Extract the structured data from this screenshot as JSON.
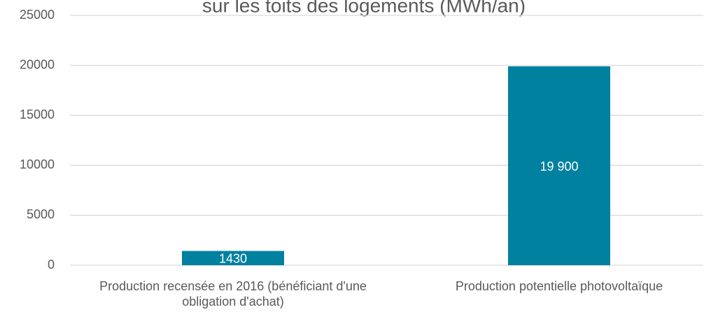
{
  "chart_data": {
    "type": "bar",
    "title": "sur les toits des logements (MWh/an)",
    "categories": [
      "Production recensée en 2016 (bénéficiant d'une obligation d'achat)",
      "Production potentielle photovoltaïque"
    ],
    "values": [
      1430,
      19900
    ],
    "value_labels": [
      "1430",
      "19 900"
    ],
    "color": "#00819f",
    "ylim": [
      0,
      25000
    ],
    "yticks": [
      0,
      5000,
      10000,
      15000,
      20000,
      25000
    ],
    "grid": true
  }
}
